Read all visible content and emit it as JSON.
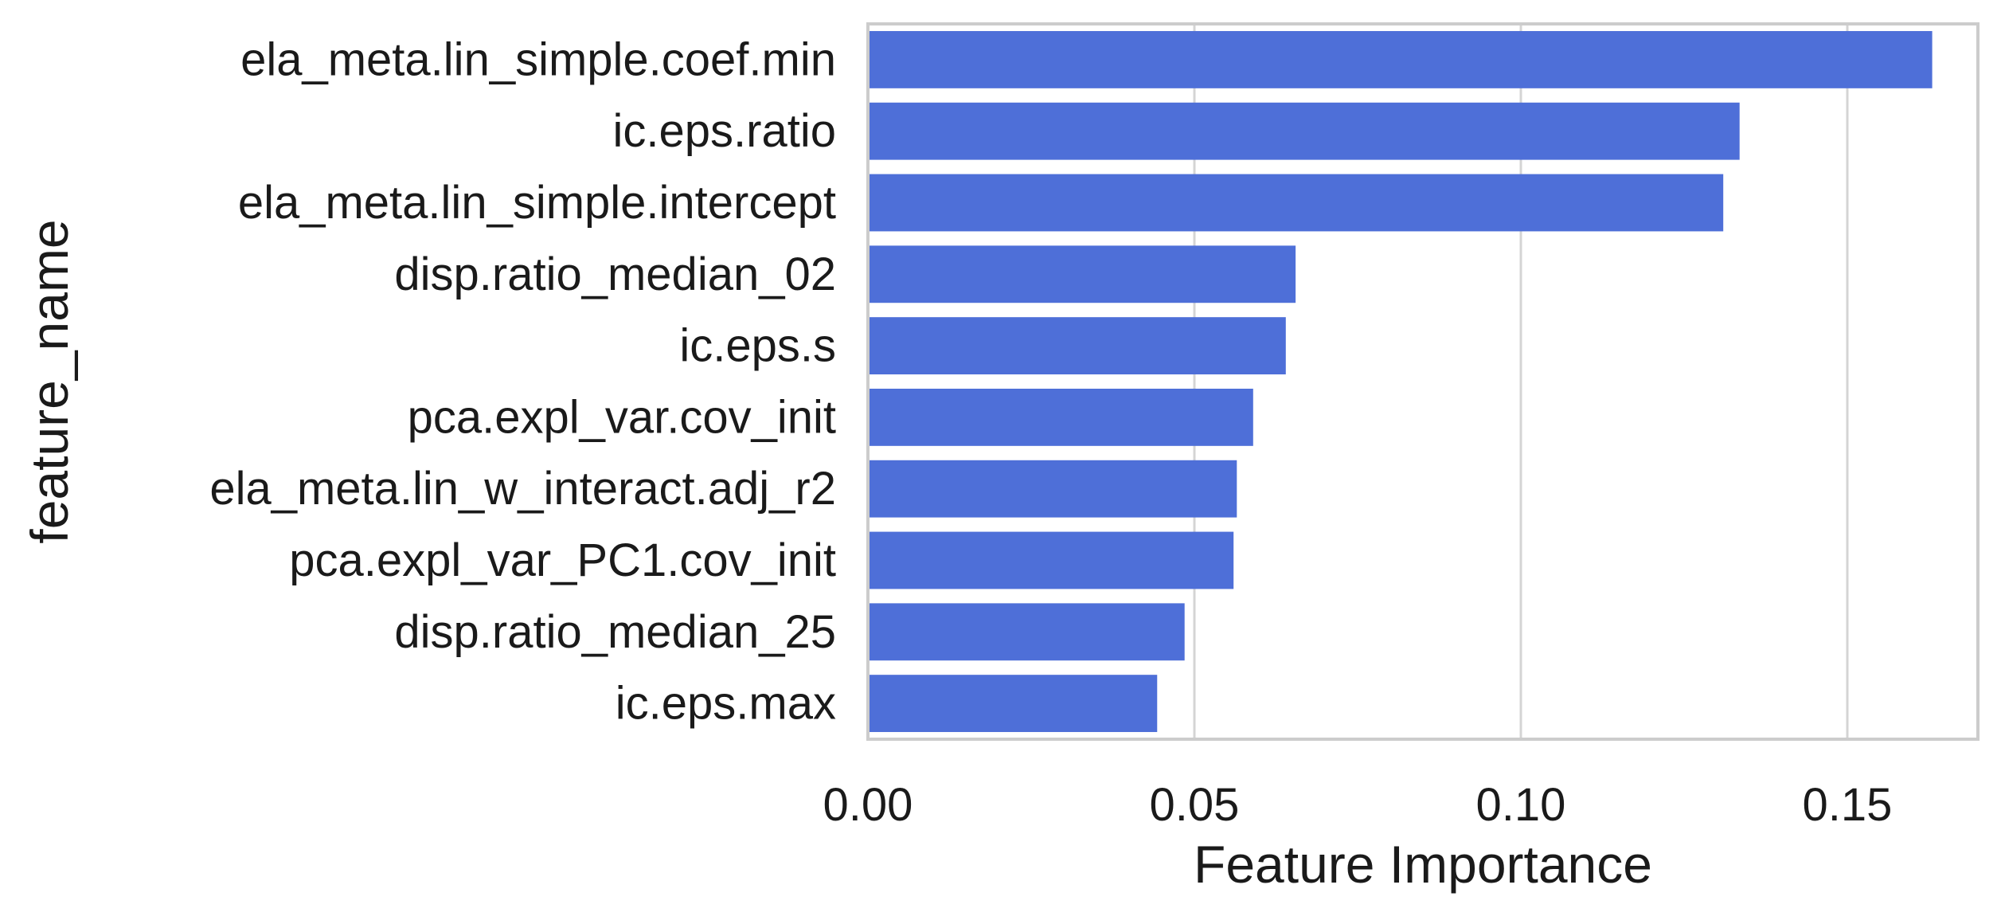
{
  "chart_data": {
    "type": "bar",
    "orientation": "horizontal",
    "title": "",
    "xlabel": "Feature Importance",
    "ylabel": "feature_name",
    "xlim": [
      0,
      0.17
    ],
    "xticks": [
      0.0,
      0.05,
      0.1,
      0.15
    ],
    "xtick_labels": [
      "0.00",
      "0.05",
      "0.10",
      "0.15"
    ],
    "grid": "vertical",
    "bar_color": "#4e6fd8",
    "grid_color": "#d4d4d4",
    "frame_color": "#cccccc",
    "categories": [
      "ela_meta.lin_simple.coef.min",
      "ic.eps.ratio",
      "ela_meta.lin_simple.intercept",
      "disp.ratio_median_02",
      "ic.eps.s",
      "pca.expl_var.cov_init",
      "ela_meta.lin_w_interact.adj_r2",
      "pca.expl_var_PC1.cov_init",
      "disp.ratio_median_25",
      "ic.eps.max"
    ],
    "values": [
      0.163,
      0.1335,
      0.131,
      0.0655,
      0.064,
      0.059,
      0.0565,
      0.056,
      0.0485,
      0.0443
    ]
  }
}
